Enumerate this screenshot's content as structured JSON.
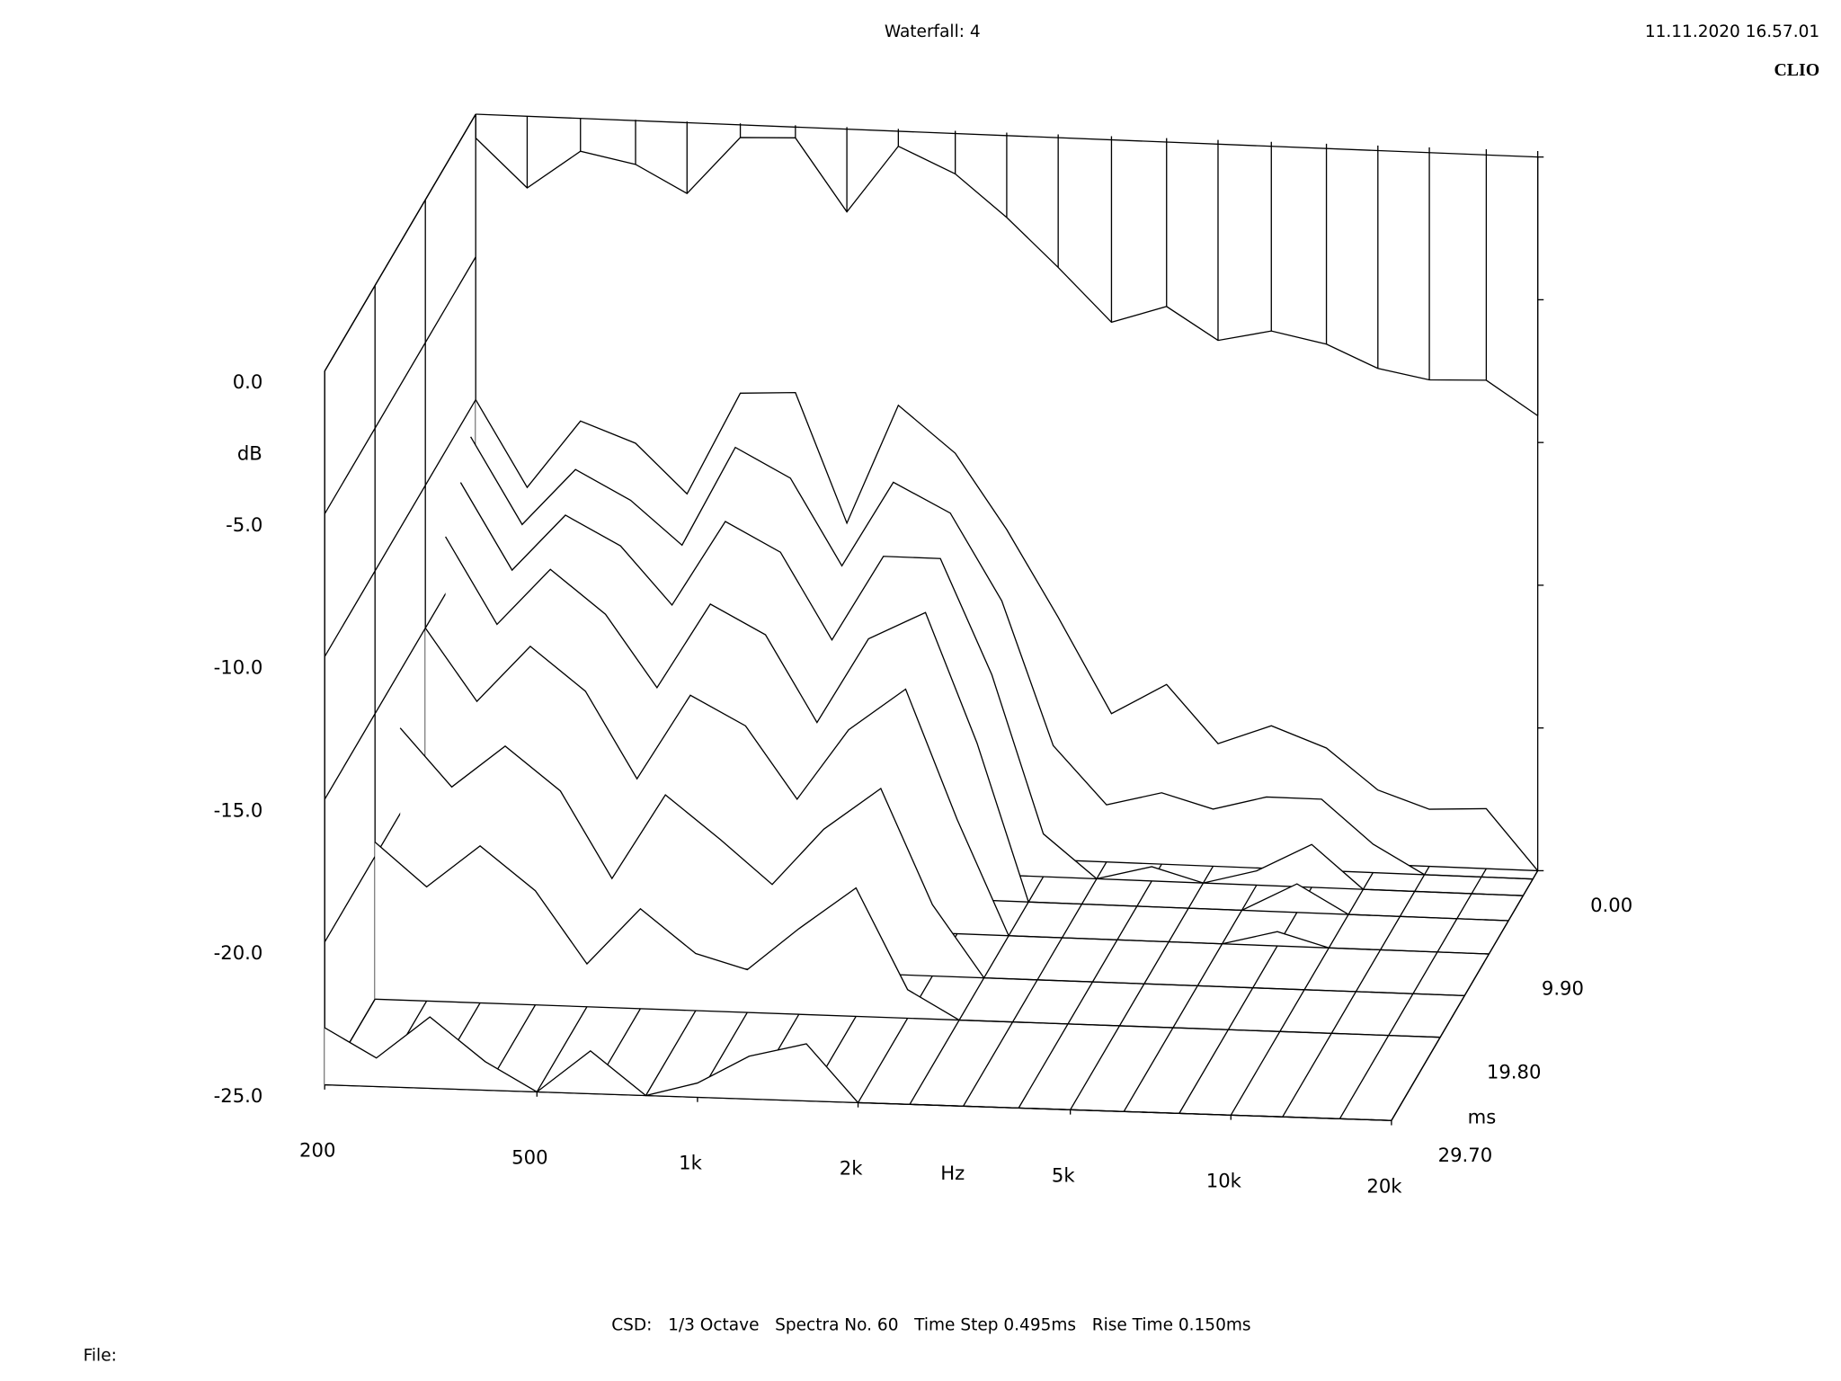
{
  "chart_data": {
    "type": "waterfall",
    "title": "Waterfall: 4",
    "timestamp": "11.11.2020 16.57.01",
    "brand": "CLIO",
    "x_label": "Hz",
    "y_label": "dB",
    "z_label": "ms",
    "log_x": true,
    "x": [
      200,
      250,
      315,
      400,
      500,
      630,
      800,
      1000,
      1250,
      1600,
      2000,
      2500,
      3150,
      4000,
      5000,
      6300,
      8000,
      10000,
      12500,
      16000,
      20000
    ],
    "xlim": [
      200,
      20000
    ],
    "xticks": [
      200,
      500,
      {
        "value": 1000,
        "label": "1k"
      },
      {
        "value": 2000,
        "label": "2k"
      },
      {
        "value": 5000,
        "label": "5k"
      },
      {
        "value": 10000,
        "label": "10k"
      },
      {
        "value": 20000,
        "label": "20k"
      }
    ],
    "ylim": [
      -25,
      0
    ],
    "yticks": [
      {
        "value": 0,
        "label": "0.0"
      },
      {
        "value": -5,
        "label": "-5.0"
      },
      {
        "value": -10,
        "label": "-10.0"
      },
      {
        "value": -15,
        "label": "-15.0"
      },
      {
        "value": -20,
        "label": "-20.0"
      },
      {
        "value": -25,
        "label": "-25.0"
      }
    ],
    "zlim": [
      0,
      29.7
    ],
    "zticks": [
      {
        "value": 0,
        "label": "0.00"
      },
      {
        "value": 9.9,
        "label": "9.90"
      },
      {
        "value": 19.8,
        "label": "19.80"
      },
      {
        "value": 29.7,
        "label": "29.70"
      }
    ],
    "slices": [
      {
        "time": 0,
        "values": [
          -10,
          -13,
          -10.6,
          -11.3,
          -13,
          -9.4,
          -9.3,
          -13.8,
          -9.6,
          -11.2,
          -13.8,
          -16.8,
          -20.1,
          -19,
          -21,
          -20.3,
          -21,
          -22.4,
          -23,
          -22.9,
          -25
        ]
      },
      {
        "time": 0.99,
        "values": [
          -11,
          -14,
          -12,
          -13,
          -14.5,
          -11,
          -12,
          -15,
          -12,
          -13,
          -16,
          -21,
          -23,
          -22.5,
          -23,
          -22.5,
          -22.5,
          -24,
          -25,
          -25,
          -25
        ]
      },
      {
        "time": 2.97,
        "values": [
          -12,
          -15,
          -13,
          -14,
          -16,
          -13,
          -14,
          -17,
          -14,
          -14,
          -18,
          -23.5,
          -25,
          -24.5,
          -25,
          -24.5,
          -23.5,
          -25,
          -25,
          -25,
          -25
        ]
      },
      {
        "time": 5.94,
        "values": [
          -13,
          -16,
          -14,
          -15.5,
          -18,
          -15,
          -16,
          -19,
          -16,
          -15,
          -19.5,
          -25,
          -25,
          -25,
          -25,
          -25,
          -24,
          -25,
          -25,
          -25,
          -25
        ]
      },
      {
        "time": 9.9,
        "values": [
          -15,
          -17.5,
          -15.5,
          -17,
          -20,
          -17,
          -18,
          -20.5,
          -18,
          -16.5,
          -21,
          -25,
          -25,
          -25,
          -25,
          -25,
          -24.5,
          -25,
          -25,
          -25,
          -25
        ]
      },
      {
        "time": 14.85,
        "values": [
          -17,
          -19,
          -17.5,
          -19,
          -22,
          -19,
          -20.5,
          -22,
          -20,
          -18.5,
          -22.5,
          -25,
          -25,
          -25,
          -25,
          -25,
          -25,
          -25,
          -25,
          -25,
          -25
        ]
      },
      {
        "time": 19.8,
        "values": [
          -19.5,
          -21,
          -19.5,
          -21,
          -23.5,
          -21.5,
          -23,
          -23.5,
          -22,
          -20.5,
          -24,
          -25,
          -25,
          -25,
          -25,
          -25,
          -25,
          -25,
          -25,
          -25,
          -25
        ]
      },
      {
        "time": 29.7,
        "values": [
          -23,
          -24,
          -22.5,
          -24,
          -25,
          -23.5,
          -25,
          -24.5,
          -23.5,
          -23,
          -25,
          -25,
          -25,
          -25,
          -25,
          -25,
          -25,
          -25,
          -25,
          -25,
          -25
        ]
      }
    ]
  },
  "footer": "CSD:   1/3 Octave   Spectra No. 60   Time Step 0.495ms   Rise Time 0.150ms",
  "file_label": "File:"
}
